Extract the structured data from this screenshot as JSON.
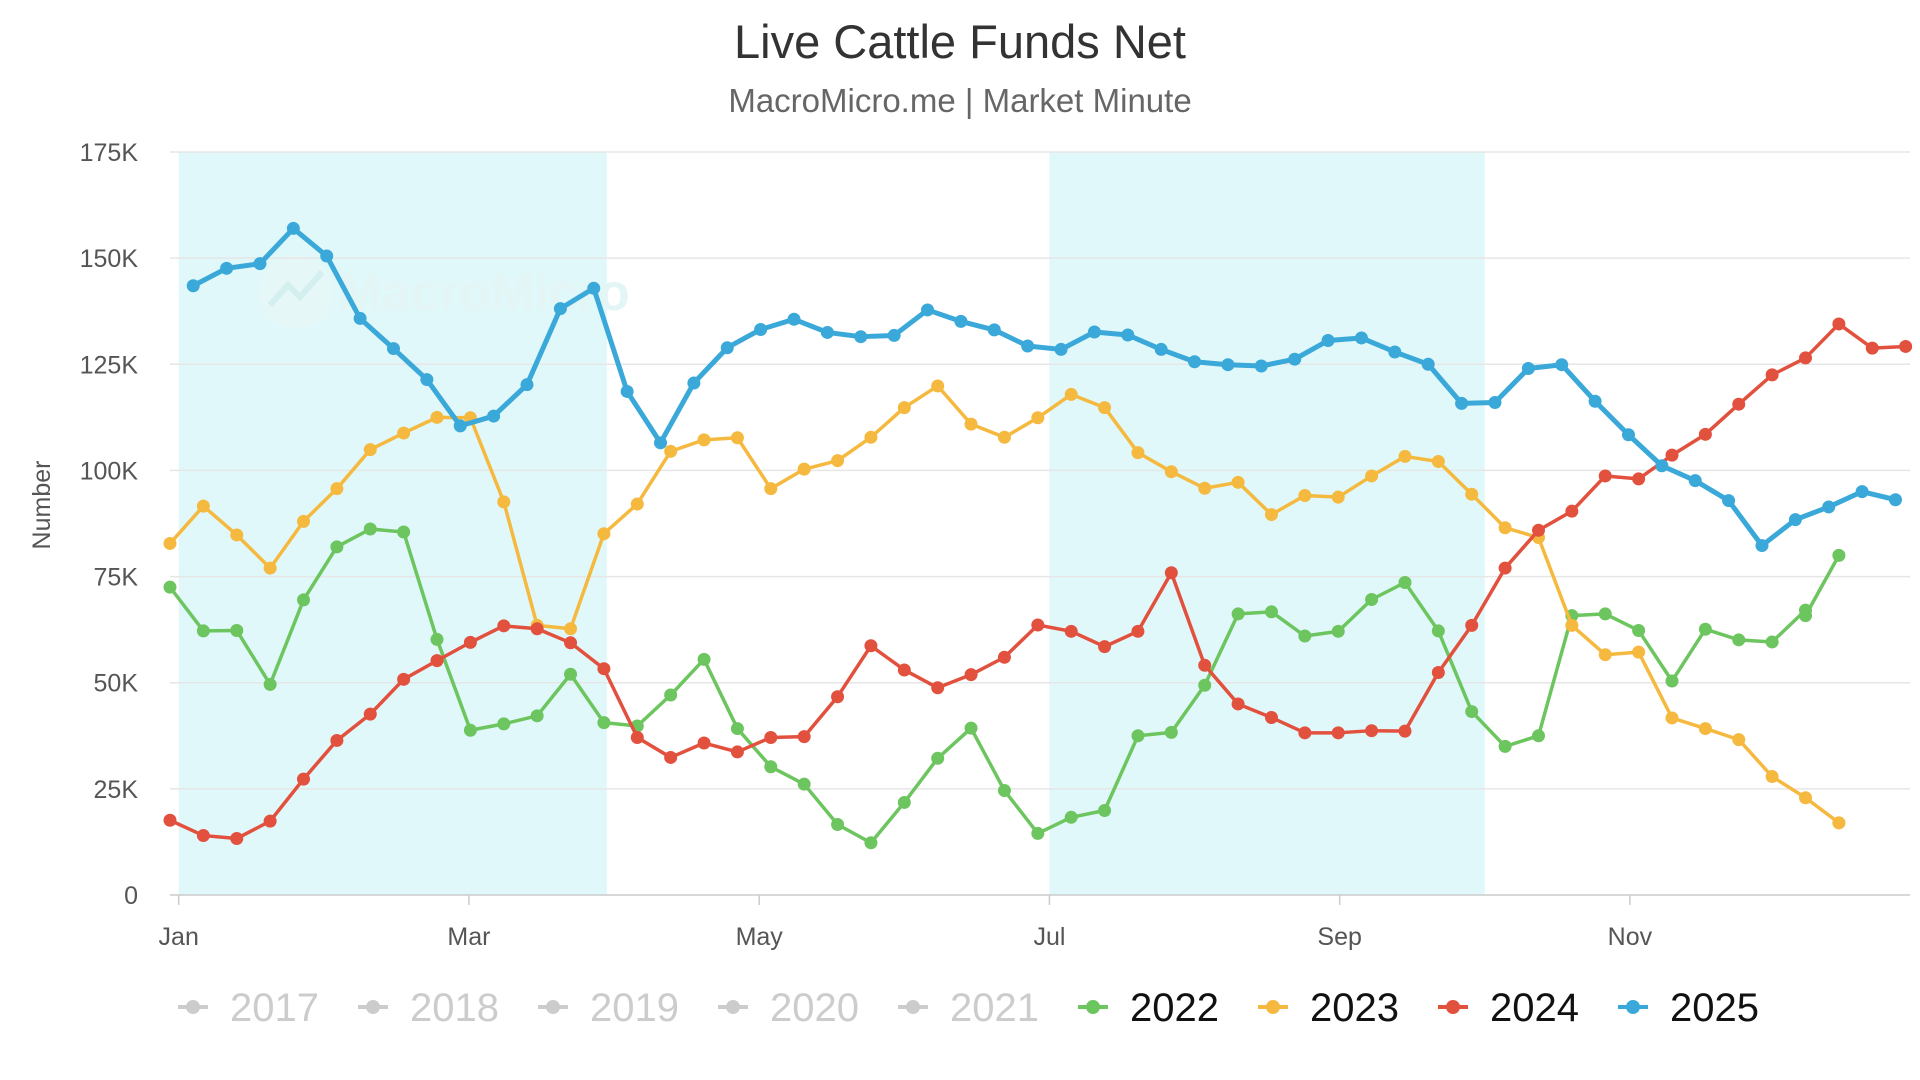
{
  "chart_data": {
    "type": "line",
    "title": "Live Cattle Funds Net",
    "subtitle": "MacroMicro.me | Market Minute",
    "watermark": "MacroMicro",
    "ylabel": "Number",
    "ylim": [
      0,
      175000
    ],
    "y_ticks": [
      {
        "value": 0,
        "label": "0"
      },
      {
        "value": 25000,
        "label": "25K"
      },
      {
        "value": 50000,
        "label": "50K"
      },
      {
        "value": 75000,
        "label": "75K"
      },
      {
        "value": 100000,
        "label": "100K"
      },
      {
        "value": 125000,
        "label": "125K"
      },
      {
        "value": 150000,
        "label": "150K"
      },
      {
        "value": 175000,
        "label": "175K"
      }
    ],
    "xlim": [
      0.94,
      12.43
    ],
    "x_ticks": [
      {
        "value": 1.0,
        "label": "Jan"
      },
      {
        "value": 3.0,
        "label": "Mar"
      },
      {
        "value": 5.0,
        "label": "May"
      },
      {
        "value": 7.0,
        "label": "Jul"
      },
      {
        "value": 9.0,
        "label": "Sep"
      },
      {
        "value": 11.0,
        "label": "Nov"
      }
    ],
    "shaded_periods": [
      {
        "from": 1.0,
        "to": 3.95
      },
      {
        "from": 7.0,
        "to": 10.0
      }
    ],
    "grid": true,
    "legend_position": "bottom",
    "legend": [
      {
        "label": "2017",
        "color": "#cccccc",
        "active": false
      },
      {
        "label": "2018",
        "color": "#cccccc",
        "active": false
      },
      {
        "label": "2019",
        "color": "#cccccc",
        "active": false
      },
      {
        "label": "2020",
        "color": "#cccccc",
        "active": false
      },
      {
        "label": "2021",
        "color": "#cccccc",
        "active": false
      },
      {
        "label": "2022",
        "color": "#6cc55e",
        "active": true
      },
      {
        "label": "2023",
        "color": "#f5b93f",
        "active": true
      },
      {
        "label": "2024",
        "color": "#e2503e",
        "active": true
      },
      {
        "label": "2025",
        "color": "#3aa8d8",
        "active": true
      }
    ],
    "series": [
      {
        "name": "2022",
        "color": "#6cc55e",
        "x": [
          0.94,
          1.17,
          1.4,
          1.63,
          1.86,
          2.09,
          2.32,
          2.55,
          2.78,
          3.01,
          3.24,
          3.47,
          3.7,
          3.93,
          4.16,
          4.39,
          4.62,
          4.85,
          5.08,
          5.31,
          5.54,
          5.77,
          6.0,
          6.23,
          6.46,
          6.69,
          6.92,
          7.15,
          7.38,
          7.61,
          7.84,
          8.07,
          8.3,
          8.53,
          8.76,
          8.99,
          9.22,
          9.45,
          9.68,
          9.91,
          10.14,
          10.37,
          10.6,
          10.83,
          11.06,
          11.29,
          11.52,
          11.75,
          11.98,
          12.21
        ],
        "values": [
          72500,
          62200,
          62300,
          49600,
          69500,
          82000,
          86200,
          85500,
          60200,
          38800,
          40300,
          42200,
          52000,
          40600,
          39800,
          47100,
          55500,
          39200,
          30200,
          26100,
          16600,
          12300,
          21800,
          32200,
          39300,
          24600,
          14500,
          18300,
          19900,
          37500,
          38300,
          49400,
          66200,
          66700,
          61000,
          62100,
          69600,
          73600,
          62200,
          43200,
          35000,
          37500,
          65800,
          66200,
          62300,
          50400,
          62600,
          60100,
          59600,
          67100
        ],
        "extra": [
          {
            "x": 12.21,
            "y": 65800
          },
          {
            "x": 12.44,
            "y": 80000
          }
        ]
      },
      {
        "name": "2023",
        "color": "#f5b93f",
        "x": [
          0.94,
          1.17,
          1.4,
          1.63,
          1.86,
          2.09,
          2.32,
          2.55,
          2.78,
          3.01,
          3.24,
          3.47,
          3.7,
          3.93,
          4.16,
          4.39,
          4.62,
          4.85,
          5.08,
          5.31,
          5.54,
          5.77,
          6.0,
          6.23,
          6.46,
          6.69,
          6.92,
          7.15,
          7.38,
          7.61,
          7.84,
          8.07,
          8.3,
          8.53,
          8.76,
          8.99,
          9.22,
          9.45,
          9.68,
          9.91,
          10.14,
          10.37,
          10.6,
          10.83,
          11.06,
          11.29,
          11.52,
          11.75,
          11.98,
          12.21,
          12.44
        ],
        "values": [
          82800,
          91600,
          84800,
          77000,
          88000,
          95700,
          104900,
          108800,
          112500,
          112400,
          92600,
          63500,
          62700,
          85100,
          92100,
          104500,
          107200,
          107700,
          95700,
          100300,
          102300,
          107800,
          114800,
          119900,
          110900,
          107800,
          112400,
          117900,
          114800,
          104200,
          99700,
          95800,
          97200,
          89600,
          94100,
          93700,
          98700,
          103300,
          102100,
          94400,
          86500,
          84200,
          63500,
          56600,
          57200,
          41700,
          39200,
          36600,
          27900,
          22900,
          17000
        ],
        "extra": [
          {
            "x": 12.44,
            "y": 17000
          }
        ]
      },
      {
        "name": "2024",
        "color": "#e2503e",
        "x": [
          0.94,
          1.17,
          1.4,
          1.63,
          1.86,
          2.09,
          2.32,
          2.55,
          2.78,
          3.01,
          3.24,
          3.47,
          3.7,
          3.93,
          4.16,
          4.39,
          4.62,
          4.85,
          5.08,
          5.31,
          5.54,
          5.77,
          6.0,
          6.23,
          6.46,
          6.69,
          6.92,
          7.15,
          7.38,
          7.61,
          7.84,
          8.07,
          8.3,
          8.53,
          8.76,
          8.99,
          9.22,
          9.45,
          9.68,
          9.91,
          10.14,
          10.37,
          10.6,
          10.83,
          11.06,
          11.29,
          11.52,
          11.75,
          11.98,
          12.21,
          12.44,
          12.67
        ],
        "values": [
          17600,
          14000,
          13300,
          17400,
          27300,
          36400,
          42600,
          50800,
          55200,
          59500,
          63400,
          62700,
          59400,
          53300,
          37100,
          32400,
          35800,
          33700,
          37100,
          37300,
          46700,
          58700,
          53000,
          48800,
          51900,
          56000,
          63600,
          62100,
          58500,
          62100,
          75900,
          54100,
          45000,
          41800,
          38200,
          38200,
          38700,
          38600,
          52400,
          63500,
          77000,
          85900,
          90400,
          98700,
          98000,
          103600,
          108500,
          115600,
          122500,
          126500,
          134500,
          128800
        ],
        "extra": [
          {
            "x": 12.9,
            "y": 129200
          }
        ]
      },
      {
        "name": "2025",
        "color": "#3aa8d8",
        "x": [
          1.1,
          1.33,
          1.56,
          1.79,
          2.02,
          2.25,
          2.48,
          2.71,
          2.94,
          3.17,
          3.4,
          3.63,
          3.86,
          4.09,
          4.32,
          4.55,
          4.78,
          5.01,
          5.24,
          5.47,
          5.7,
          5.93,
          6.16,
          6.39,
          6.62,
          6.85,
          7.08,
          7.31,
          7.54,
          7.77,
          8.0,
          8.23,
          8.46,
          8.69,
          8.92,
          9.15,
          9.38,
          9.61,
          9.84,
          10.07,
          10.3,
          10.53,
          10.76,
          10.99,
          11.22,
          11.45,
          11.68,
          11.91,
          12.14,
          12.37,
          12.6,
          12.83
        ],
        "values": [
          143500,
          147600,
          148700,
          157000,
          150500,
          135800,
          128700,
          121400,
          110500,
          112800,
          120200,
          138100,
          142900,
          118600,
          106500,
          120600,
          128900,
          133200,
          135600,
          132500,
          131500,
          131800,
          137800,
          135100,
          133100,
          129300,
          128500,
          132600,
          131900,
          128500,
          125600,
          124900,
          124600,
          126200,
          130600,
          131200,
          127900,
          125000,
          115800,
          116000,
          124000,
          124900,
          116300,
          108400,
          101100,
          97600,
          92900,
          82300,
          88400,
          91400,
          95000,
          93100
        ]
      }
    ]
  }
}
